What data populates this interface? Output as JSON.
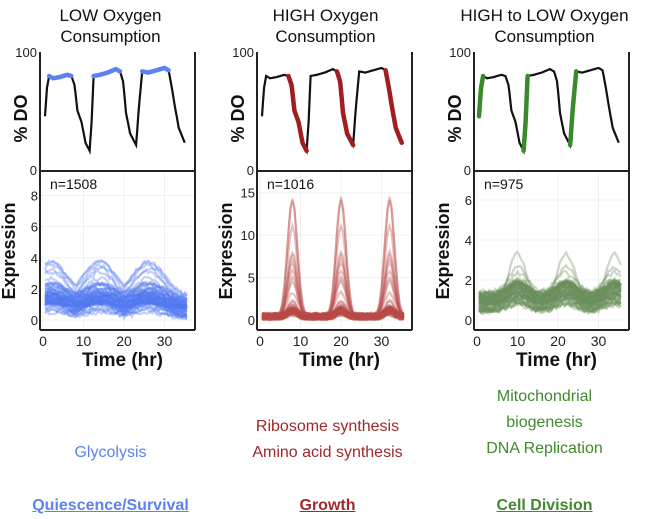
{
  "panels": [
    {
      "title_line1": "LOW Oxygen",
      "title_line2": "Consumption",
      "highlight": "plateau",
      "n_label": "n=1508",
      "do_color": "#5b82f0",
      "expr_color": "#4f77f0",
      "expr_ylim": [
        0,
        9
      ],
      "expr_ticks": [
        0,
        2,
        4,
        6,
        8
      ],
      "process": [
        "Glycolysis"
      ],
      "process_color": "#5b82f0",
      "category": "Quiescence/Survival"
    },
    {
      "title_line1": "HIGH Oxygen",
      "title_line2": "Consumption",
      "highlight": "descent",
      "n_label": "n=1016",
      "do_color": "#a21e1e",
      "expr_color": "#b84a48",
      "expr_ylim": [
        0,
        16.5
      ],
      "expr_ticks": [
        0,
        5,
        10,
        15
      ],
      "process": [
        "Ribosome synthesis",
        "Amino acid synthesis"
      ],
      "process_color": "#a0282a",
      "category": "Growth"
    },
    {
      "title_line1": "HIGH to LOW Oxygen",
      "title_line2": "Consumption",
      "highlight": "rise",
      "n_label": "n=975",
      "do_color": "#3a8a2c",
      "expr_color": "#6a8f5c",
      "expr_ylim": [
        0,
        7
      ],
      "expr_ticks": [
        0,
        2,
        4,
        6
      ],
      "process": [
        "Mitochondrial",
        "biogenesis",
        "DNA Replication"
      ],
      "process_color": "#3f8a2a",
      "category": "Cell Division"
    }
  ],
  "chart_data": {
    "type": "line",
    "do_axis": {
      "ylabel": "% DO",
      "yticks": [
        "0",
        "100"
      ],
      "ylim": [
        0,
        100
      ]
    },
    "expr_axis": {
      "ylabel": "Expression"
    },
    "xaxis": {
      "xlabel": "Time (hr)",
      "xticks": [
        0,
        10,
        20,
        30
      ],
      "xlim": [
        -1,
        36
      ]
    },
    "do_curve": [
      [
        0.5,
        45
      ],
      [
        1,
        70
      ],
      [
        1.5,
        80
      ],
      [
        2.5,
        78
      ],
      [
        4,
        79
      ],
      [
        6,
        81
      ],
      [
        7,
        80
      ],
      [
        7.8,
        72
      ],
      [
        8.5,
        50
      ],
      [
        9.5,
        40
      ],
      [
        10.5,
        22
      ],
      [
        11.5,
        15
      ],
      [
        12,
        40
      ],
      [
        12.5,
        80
      ],
      [
        14,
        81
      ],
      [
        16,
        83
      ],
      [
        18,
        86
      ],
      [
        19,
        84
      ],
      [
        19.8,
        75
      ],
      [
        20.5,
        48
      ],
      [
        21.5,
        30
      ],
      [
        23,
        20
      ],
      [
        23.6,
        50
      ],
      [
        24.5,
        84
      ],
      [
        26,
        83
      ],
      [
        28,
        85
      ],
      [
        30,
        87
      ],
      [
        31,
        85
      ],
      [
        31.8,
        70
      ],
      [
        32.5,
        55
      ],
      [
        33.5,
        35
      ],
      [
        35,
        22
      ]
    ],
    "segments": {
      "plateau": [
        [
          1.5,
          7
        ],
        [
          12.5,
          19
        ],
        [
          24.5,
          31
        ]
      ],
      "descent": [
        [
          7,
          11.5
        ],
        [
          19,
          23
        ],
        [
          31,
          35
        ]
      ],
      "rise": [
        [
          0.5,
          1.5
        ],
        [
          11.5,
          12.5
        ],
        [
          23,
          24.5
        ]
      ]
    },
    "expr_profiles": {
      "low": {
        "peaks": [
          2,
          14,
          26
        ],
        "base": 0.8,
        "peak": 1.5,
        "width": 4,
        "spread": 0.7,
        "spike": 4.5
      },
      "high": {
        "peaks": [
          8,
          20,
          32
        ],
        "base": 0.4,
        "peak": 1.2,
        "width": 1.2,
        "spread": 0.35,
        "spike": 15
      },
      "rise": {
        "peaks": [
          10,
          22,
          34
        ],
        "base": 0.9,
        "peak": 1.5,
        "width": 2.5,
        "spread": 0.5,
        "spike": 5
      }
    }
  }
}
